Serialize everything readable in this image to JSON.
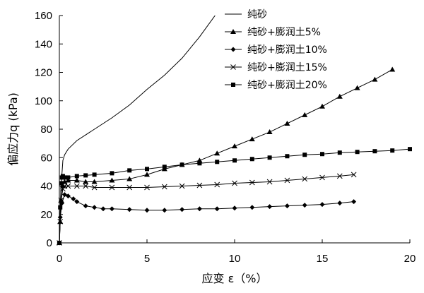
{
  "chart_data": {
    "type": "line",
    "xlabel": "应变 ε（%）",
    "ylabel": "偏应力q (kPa)",
    "xlim": [
      0,
      20
    ],
    "ylim": [
      0,
      160
    ],
    "x_ticks": [
      "0",
      "5",
      "10",
      "15",
      "20"
    ],
    "y_ticks": [
      "0",
      "20",
      "40",
      "60",
      "80",
      "100",
      "120",
      "140",
      "160"
    ],
    "grid": false,
    "legend_position": "top-right",
    "series": [
      {
        "name": "纯砂",
        "marker": "none",
        "points": [
          [
            0,
            0
          ],
          [
            0.05,
            20
          ],
          [
            0.1,
            40
          ],
          [
            0.2,
            58
          ],
          [
            0.3,
            62
          ],
          [
            0.5,
            66
          ],
          [
            1,
            72
          ],
          [
            1.5,
            76
          ],
          [
            2,
            80
          ],
          [
            3,
            88
          ],
          [
            4,
            97
          ],
          [
            5,
            108
          ],
          [
            6,
            118
          ],
          [
            7,
            130
          ],
          [
            8,
            145
          ],
          [
            9,
            162
          ]
        ]
      },
      {
        "name": "纯砂+膨润土5%",
        "marker": "triangle",
        "points": [
          [
            0,
            0
          ],
          [
            0.05,
            15
          ],
          [
            0.1,
            30
          ],
          [
            0.2,
            40
          ],
          [
            0.3,
            43
          ],
          [
            0.5,
            44
          ],
          [
            1,
            44
          ],
          [
            1.5,
            43
          ],
          [
            2,
            43
          ],
          [
            3,
            44
          ],
          [
            4,
            45
          ],
          [
            5,
            48
          ],
          [
            6,
            52
          ],
          [
            7,
            55
          ],
          [
            8,
            58
          ],
          [
            9,
            63
          ],
          [
            10,
            68
          ],
          [
            11,
            73
          ],
          [
            12,
            78
          ],
          [
            13,
            84
          ],
          [
            14,
            90
          ],
          [
            15,
            96
          ],
          [
            16,
            103
          ],
          [
            17,
            109
          ],
          [
            18,
            115
          ],
          [
            19,
            122
          ]
        ]
      },
      {
        "name": "纯砂+膨润土10%",
        "marker": "diamond",
        "points": [
          [
            0,
            0
          ],
          [
            0.05,
            18
          ],
          [
            0.15,
            28
          ],
          [
            0.3,
            34
          ],
          [
            0.5,
            33
          ],
          [
            0.8,
            31
          ],
          [
            1,
            29
          ],
          [
            1.5,
            26
          ],
          [
            2,
            25
          ],
          [
            2.5,
            24
          ],
          [
            3,
            24
          ],
          [
            4,
            23.5
          ],
          [
            5,
            23
          ],
          [
            6,
            23
          ],
          [
            7,
            23.5
          ],
          [
            8,
            24
          ],
          [
            9,
            24
          ],
          [
            10,
            24.5
          ],
          [
            11,
            25
          ],
          [
            12,
            25.5
          ],
          [
            13,
            26
          ],
          [
            14,
            26.5
          ],
          [
            15,
            27
          ],
          [
            16,
            28
          ],
          [
            16.8,
            29
          ]
        ]
      },
      {
        "name": "纯砂+膨润土15%",
        "marker": "cross",
        "points": [
          [
            0,
            0
          ],
          [
            0.05,
            15
          ],
          [
            0.1,
            30
          ],
          [
            0.2,
            38
          ],
          [
            0.3,
            40
          ],
          [
            0.5,
            40
          ],
          [
            1,
            40
          ],
          [
            1.5,
            40
          ],
          [
            2,
            39
          ],
          [
            3,
            39
          ],
          [
            4,
            39
          ],
          [
            5,
            39
          ],
          [
            6,
            39.5
          ],
          [
            7,
            40
          ],
          [
            8,
            40.5
          ],
          [
            9,
            41
          ],
          [
            10,
            42
          ],
          [
            11,
            42.5
          ],
          [
            12,
            43
          ],
          [
            13,
            44
          ],
          [
            14,
            45
          ],
          [
            15,
            46
          ],
          [
            16,
            47
          ],
          [
            16.8,
            48
          ]
        ]
      },
      {
        "name": "纯砂+膨润土20%",
        "marker": "square",
        "points": [
          [
            0,
            0
          ],
          [
            0.05,
            25
          ],
          [
            0.1,
            42
          ],
          [
            0.15,
            46
          ],
          [
            0.2,
            47
          ],
          [
            0.3,
            46
          ],
          [
            0.5,
            46
          ],
          [
            1,
            47
          ],
          [
            1.5,
            47.5
          ],
          [
            2,
            48
          ],
          [
            3,
            49
          ],
          [
            4,
            51
          ],
          [
            5,
            52
          ],
          [
            6,
            53.5
          ],
          [
            7,
            55
          ],
          [
            8,
            56
          ],
          [
            9,
            57
          ],
          [
            10,
            58
          ],
          [
            11,
            59
          ],
          [
            12,
            60
          ],
          [
            13,
            61
          ],
          [
            14,
            62
          ],
          [
            15,
            62.5
          ],
          [
            16,
            63.5
          ],
          [
            17,
            64
          ],
          [
            18,
            64.5
          ],
          [
            19,
            65
          ],
          [
            20,
            66
          ]
        ]
      }
    ]
  }
}
